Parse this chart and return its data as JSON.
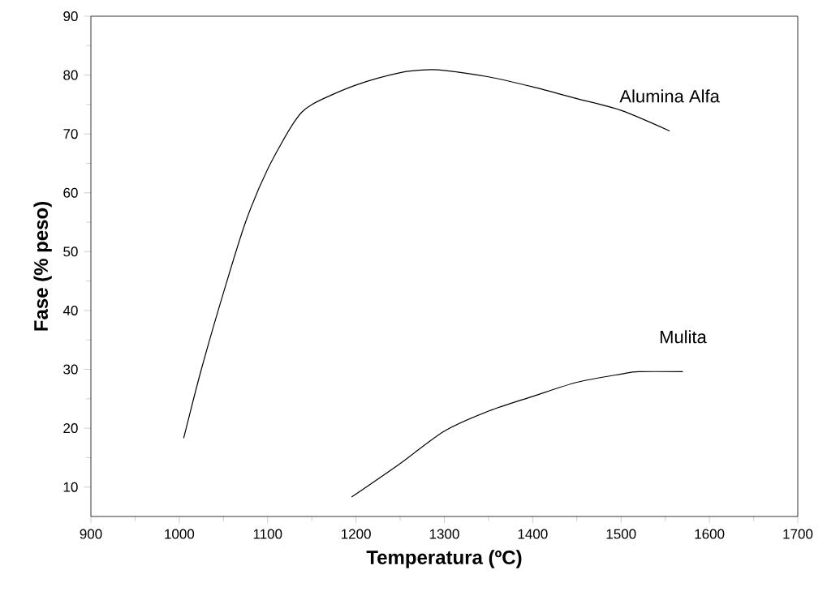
{
  "chart_data": {
    "type": "line",
    "xlabel": "Temperatura (ºC)",
    "ylabel": "Fase (% peso)",
    "xlim": [
      900,
      1700
    ],
    "xticks": [
      900,
      1000,
      1100,
      1200,
      1300,
      1400,
      1500,
      1600,
      1700
    ],
    "ylim": [
      5,
      90
    ],
    "yticks": [
      10,
      20,
      30,
      40,
      50,
      60,
      70,
      80,
      90
    ],
    "grid": false,
    "marker": "none",
    "line_style": "solid",
    "series": [
      {
        "name": "Alumina Alfa",
        "color": "#000000",
        "x": [
          1005,
          1025,
          1050,
          1075,
          1100,
          1130,
          1150,
          1200,
          1250,
          1280,
          1300,
          1350,
          1400,
          1450,
          1500,
          1555
        ],
        "values": [
          18.3,
          30,
          43,
          55,
          64,
          72,
          75,
          78.3,
          80.4,
          80.9,
          80.8,
          79.7,
          78,
          76,
          74,
          70.5
        ]
      },
      {
        "name": "Mulita",
        "color": "#000000",
        "x": [
          1195,
          1250,
          1300,
          1350,
          1400,
          1450,
          1500,
          1520,
          1570
        ],
        "values": [
          8.3,
          14,
          19.5,
          22.9,
          25.4,
          27.8,
          29.2,
          29.6,
          29.6
        ]
      }
    ]
  }
}
